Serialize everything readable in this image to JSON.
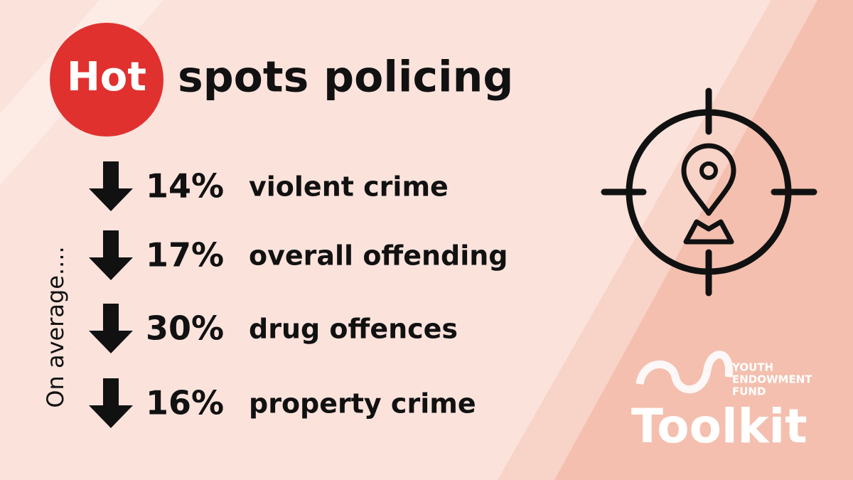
{
  "header": {
    "highlight": "Hot",
    "title": "spots policing"
  },
  "side_label": "On average....",
  "items": [
    {
      "change": "14%",
      "label": "violent crime"
    },
    {
      "change": "17%",
      "label": "overall offending"
    },
    {
      "change": "30%",
      "label": "drug offences"
    },
    {
      "change": "16%",
      "label": "property crime"
    }
  ],
  "logo": {
    "line1": "YOUTH",
    "line2": "ENDOWMENT",
    "line3": "FUND",
    "name": "Toolkit"
  }
}
